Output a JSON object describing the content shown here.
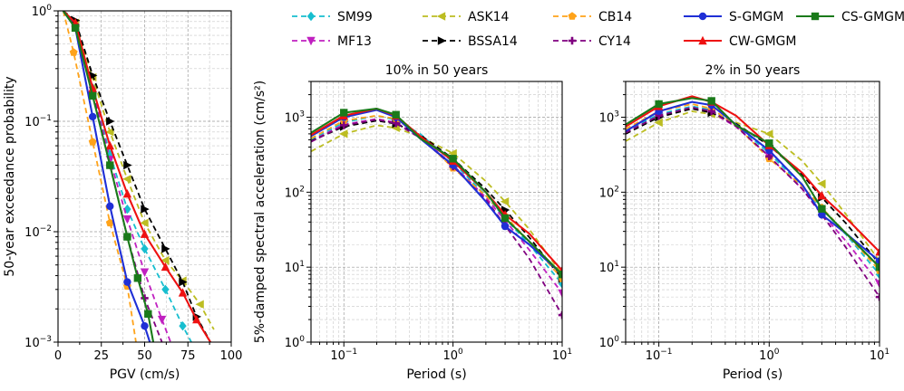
{
  "legend": {
    "items": [
      {
        "key": "SM99",
        "label": "SM99",
        "color": "#17becf",
        "dash": true,
        "marker": "diamond"
      },
      {
        "key": "MF13",
        "label": "MF13",
        "color": "#c020c0",
        "dash": true,
        "marker": "triangle-down"
      },
      {
        "key": "ASK14",
        "label": "ASK14",
        "color": "#bcbd22",
        "dash": true,
        "marker": "triangle-left"
      },
      {
        "key": "BSSA14",
        "label": "BSSA14",
        "color": "#000000",
        "dash": true,
        "marker": "triangle-right"
      },
      {
        "key": "CB14",
        "label": "CB14",
        "color": "#ffa31a",
        "dash": true,
        "marker": "pentagon"
      },
      {
        "key": "CY14",
        "label": "CY14",
        "color": "#800080",
        "dash": true,
        "marker": "plus"
      },
      {
        "key": "SGMGM",
        "label": "S-GMGM",
        "color": "#1f2fd6",
        "dash": false,
        "marker": "circle"
      },
      {
        "key": "CWGMGM",
        "label": "CW-GMGM",
        "color": "#ee1111",
        "dash": false,
        "marker": "triangle-up"
      },
      {
        "key": "CSGMGM",
        "label": "CS-GMGM",
        "color": "#1a7a1a",
        "dash": false,
        "marker": "square"
      }
    ]
  },
  "chart_data": [
    {
      "type": "line",
      "title": "",
      "xlabel": "PGV (cm/s)",
      "ylabel": "50-year exceedance probability",
      "xscale": "linear",
      "yscale": "log",
      "xlim": [
        0,
        100
      ],
      "ylim": [
        0.001,
        1
      ],
      "xticks": [
        0,
        25,
        50,
        75,
        100
      ],
      "yticks": [
        {
          "value": 1,
          "label": "10",
          "exp": "0"
        },
        {
          "value": 0.1,
          "label": "10",
          "exp": "−1"
        },
        {
          "value": 0.01,
          "label": "10",
          "exp": "−2"
        },
        {
          "value": 0.001,
          "label": "10",
          "exp": "−3"
        }
      ],
      "grid": true,
      "series": [
        {
          "key": "SM99",
          "x": [
            3,
            10,
            20,
            30,
            40,
            50,
            62,
            72,
            77
          ],
          "y": [
            1,
            0.75,
            0.2,
            0.05,
            0.016,
            0.007,
            0.003,
            0.0014,
            0.001
          ]
        },
        {
          "key": "MF13",
          "x": [
            3,
            10,
            20,
            30,
            40,
            50,
            60,
            65
          ],
          "y": [
            1,
            0.75,
            0.19,
            0.045,
            0.013,
            0.0043,
            0.0016,
            0.001
          ]
        },
        {
          "key": "ASK14",
          "x": [
            3,
            10,
            20,
            30,
            40,
            50,
            62,
            72,
            82,
            90
          ],
          "y": [
            1,
            0.78,
            0.25,
            0.08,
            0.03,
            0.012,
            0.0055,
            0.0036,
            0.0022,
            0.0013
          ]
        },
        {
          "key": "BSSA14",
          "x": [
            3,
            10,
            20,
            30,
            40,
            50,
            62,
            72,
            80,
            88
          ],
          "y": [
            1,
            0.82,
            0.26,
            0.1,
            0.04,
            0.016,
            0.007,
            0.0035,
            0.0017,
            0.001
          ]
        },
        {
          "key": "CB14",
          "x": [
            3,
            9,
            20,
            30,
            40,
            45
          ],
          "y": [
            1,
            0.42,
            0.065,
            0.012,
            0.0032,
            0.001
          ]
        },
        {
          "key": "CY14",
          "x": [
            3,
            10,
            20,
            30,
            40,
            50,
            60
          ],
          "y": [
            1,
            0.75,
            0.18,
            0.04,
            0.009,
            0.0025,
            0.001
          ]
        },
        {
          "key": "SGMGM",
          "x": [
            3,
            10,
            20,
            30,
            40,
            50,
            53
          ],
          "y": [
            1,
            0.7,
            0.11,
            0.017,
            0.0035,
            0.0014,
            0.001
          ]
        },
        {
          "key": "CWGMGM",
          "x": [
            3,
            10,
            20,
            30,
            40,
            50,
            62,
            72,
            80,
            88
          ],
          "y": [
            1,
            0.78,
            0.2,
            0.06,
            0.022,
            0.0095,
            0.0048,
            0.0028,
            0.0016,
            0.001
          ]
        },
        {
          "key": "CSGMGM",
          "x": [
            3,
            10,
            20,
            30,
            40,
            46,
            52,
            55
          ],
          "y": [
            1,
            0.7,
            0.17,
            0.04,
            0.009,
            0.0038,
            0.0018,
            0.001
          ]
        }
      ]
    },
    {
      "type": "line",
      "title": "10% in 50 years",
      "xlabel": "Period (s)",
      "ylabel": "5%-damped spectral acceleration (cm/s²)",
      "xscale": "log",
      "yscale": "log",
      "xlim": [
        0.05,
        10
      ],
      "ylim": [
        1,
        3000
      ],
      "xticks": [
        {
          "value": 0.1,
          "label": "10",
          "exp": "−1"
        },
        {
          "value": 1,
          "label": "10",
          "exp": "0"
        },
        {
          "value": 10,
          "label": "10",
          "exp": "1"
        }
      ],
      "yticks": [
        {
          "value": 1,
          "label": "10",
          "exp": "0"
        },
        {
          "value": 10,
          "label": "10",
          "exp": "1"
        },
        {
          "value": 100,
          "label": "10",
          "exp": "2"
        },
        {
          "value": 1000,
          "label": "10",
          "exp": "3"
        }
      ],
      "grid": true,
      "series": [
        {
          "key": "SM99",
          "x": [
            0.05,
            0.1,
            0.2,
            0.3,
            0.5,
            1,
            2,
            3,
            5,
            10
          ],
          "y": [
            500,
            850,
            1050,
            920,
            600,
            250,
            90,
            45,
            20,
            6
          ]
        },
        {
          "key": "MF13",
          "x": [
            0.05,
            0.1,
            0.2,
            0.3,
            0.5,
            1,
            2,
            3,
            5,
            10
          ],
          "y": [
            480,
            800,
            950,
            850,
            550,
            230,
            85,
            42,
            17,
            4.5
          ]
        },
        {
          "key": "ASK14",
          "x": [
            0.05,
            0.1,
            0.2,
            0.3,
            0.5,
            1,
            2,
            3,
            5,
            10
          ],
          "y": [
            350,
            600,
            780,
            720,
            550,
            330,
            140,
            75,
            32,
            8
          ]
        },
        {
          "key": "BSSA14",
          "x": [
            0.05,
            0.1,
            0.2,
            0.3,
            0.5,
            1,
            2,
            3,
            5,
            10
          ],
          "y": [
            480,
            750,
            900,
            820,
            580,
            280,
            110,
            58,
            25,
            7
          ]
        },
        {
          "key": "CB14",
          "x": [
            0.05,
            0.1,
            0.2,
            0.3,
            0.5,
            1,
            2,
            3,
            5,
            10
          ],
          "y": [
            520,
            900,
            1050,
            950,
            560,
            210,
            90,
            48,
            22,
            7
          ]
        },
        {
          "key": "CY14",
          "x": [
            0.05,
            0.1,
            0.2,
            0.3,
            0.5,
            1,
            2,
            3,
            5,
            10
          ],
          "y": [
            470,
            780,
            930,
            830,
            530,
            220,
            80,
            36,
            13,
            2.3
          ]
        },
        {
          "key": "SGMGM",
          "x": [
            0.05,
            0.1,
            0.2,
            0.3,
            0.5,
            1,
            2,
            3,
            5,
            10
          ],
          "y": [
            560,
            1000,
            1250,
            1000,
            520,
            230,
            75,
            35,
            20,
            8
          ]
        },
        {
          "key": "CWGMGM",
          "x": [
            0.05,
            0.1,
            0.2,
            0.3,
            0.5,
            1,
            2,
            3,
            5,
            10
          ],
          "y": [
            580,
            1050,
            1300,
            1050,
            560,
            260,
            100,
            50,
            28,
            9
          ]
        },
        {
          "key": "CSGMGM",
          "x": [
            0.05,
            0.1,
            0.2,
            0.3,
            0.5,
            1,
            2,
            3,
            5,
            10
          ],
          "y": [
            620,
            1150,
            1300,
            1080,
            520,
            280,
            100,
            45,
            22,
            8
          ]
        }
      ]
    },
    {
      "type": "line",
      "title": "2% in 50 years",
      "xlabel": "Period (s)",
      "ylabel": "",
      "xscale": "log",
      "yscale": "log",
      "xlim": [
        0.05,
        10
      ],
      "ylim": [
        1,
        3000
      ],
      "xticks": [
        {
          "value": 0.1,
          "label": "10",
          "exp": "−1"
        },
        {
          "value": 1,
          "label": "10",
          "exp": "0"
        },
        {
          "value": 10,
          "label": "10",
          "exp": "1"
        }
      ],
      "yticks": [
        {
          "value": 1,
          "label": "10",
          "exp": "0"
        },
        {
          "value": 10,
          "label": "10",
          "exp": "1"
        },
        {
          "value": 100,
          "label": "10",
          "exp": "2"
        },
        {
          "value": 1000,
          "label": "10",
          "exp": "3"
        }
      ],
      "grid": true,
      "series": [
        {
          "key": "SM99",
          "x": [
            0.05,
            0.1,
            0.2,
            0.3,
            0.5,
            1,
            2,
            3,
            5,
            10
          ],
          "y": [
            650,
            1100,
            1400,
            1250,
            800,
            330,
            120,
            60,
            27,
            8
          ]
        },
        {
          "key": "MF13",
          "x": [
            0.05,
            0.1,
            0.2,
            0.3,
            0.5,
            1,
            2,
            3,
            5,
            10
          ],
          "y": [
            620,
            1050,
            1300,
            1150,
            750,
            300,
            110,
            52,
            22,
            6
          ]
        },
        {
          "key": "ASK14",
          "x": [
            0.05,
            0.1,
            0.2,
            0.3,
            0.5,
            1,
            2,
            3,
            5,
            10
          ],
          "y": [
            480,
            850,
            1200,
            1100,
            850,
            600,
            260,
            130,
            50,
            12
          ]
        },
        {
          "key": "BSSA14",
          "x": [
            0.05,
            0.1,
            0.2,
            0.3,
            0.5,
            1,
            2,
            3,
            5,
            10
          ],
          "y": [
            600,
            1000,
            1300,
            1150,
            820,
            420,
            170,
            85,
            38,
            11
          ]
        },
        {
          "key": "CB14",
          "x": [
            0.05,
            0.1,
            0.2,
            0.3,
            0.5,
            1,
            2,
            3,
            5,
            10
          ],
          "y": [
            700,
            1200,
            1500,
            1300,
            780,
            280,
            120,
            62,
            28,
            9
          ]
        },
        {
          "key": "CY14",
          "x": [
            0.05,
            0.1,
            0.2,
            0.3,
            0.5,
            1,
            2,
            3,
            5,
            10
          ],
          "y": [
            620,
            1050,
            1350,
            1200,
            760,
            300,
            110,
            50,
            18,
            4
          ]
        },
        {
          "key": "SGMGM",
          "x": [
            0.05,
            0.1,
            0.2,
            0.3,
            0.5,
            1,
            2,
            3,
            5,
            10
          ],
          "y": [
            650,
            1200,
            1600,
            1450,
            800,
            360,
            125,
            50,
            28,
            12
          ]
        },
        {
          "key": "CWGMGM",
          "x": [
            0.05,
            0.1,
            0.2,
            0.3,
            0.5,
            1,
            2,
            3,
            5,
            10
          ],
          "y": [
            750,
            1400,
            1900,
            1600,
            1050,
            420,
            180,
            90,
            45,
            16
          ]
        },
        {
          "key": "CSGMGM",
          "x": [
            0.05,
            0.1,
            0.2,
            0.3,
            0.5,
            1,
            2,
            3,
            5,
            10
          ],
          "y": [
            800,
            1500,
            1800,
            1650,
            780,
            450,
            160,
            60,
            28,
            10
          ]
        }
      ]
    }
  ]
}
